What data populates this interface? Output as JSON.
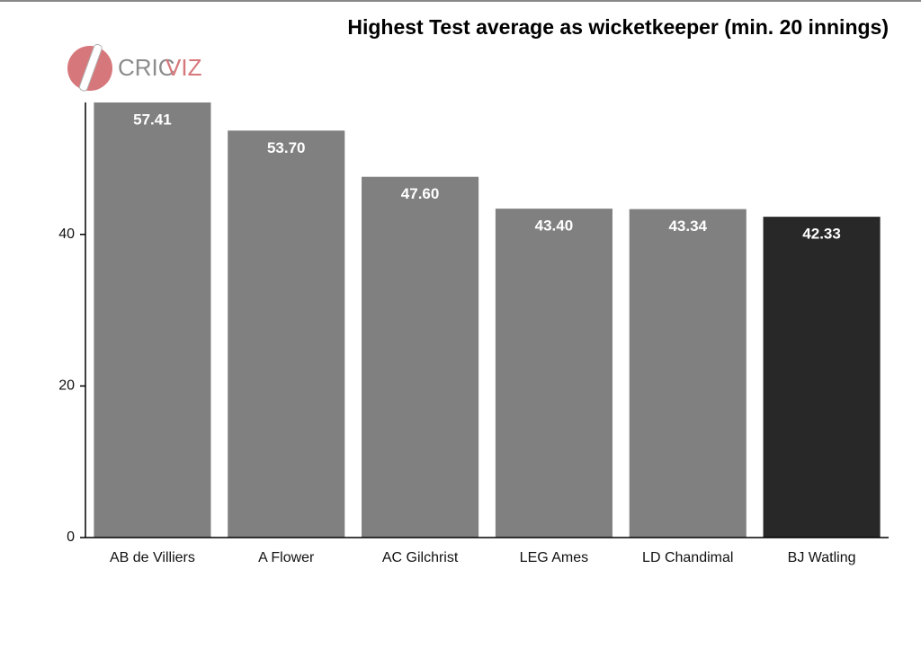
{
  "chart_data": {
    "type": "bar",
    "title": "Highest Test average as wicketkeeper (min. 20 innings)",
    "logo": [
      "CRIC",
      "VIZ"
    ],
    "categories": [
      "AB de Villiers",
      "A Flower",
      "AC Gilchrist",
      "LEG Ames",
      "LD Chandimal",
      "BJ Watling"
    ],
    "values": [
      57.41,
      53.7,
      47.6,
      43.4,
      43.34,
      42.33
    ],
    "value_labels": [
      "57.41",
      "53.70",
      "47.60",
      "43.40",
      "43.34",
      "42.33"
    ],
    "colors": [
      "#808080",
      "#808080",
      "#808080",
      "#808080",
      "#808080",
      "#282828"
    ],
    "ylim": [
      0,
      57.41
    ],
    "yticks": [
      0,
      20,
      40
    ],
    "grid": false
  }
}
